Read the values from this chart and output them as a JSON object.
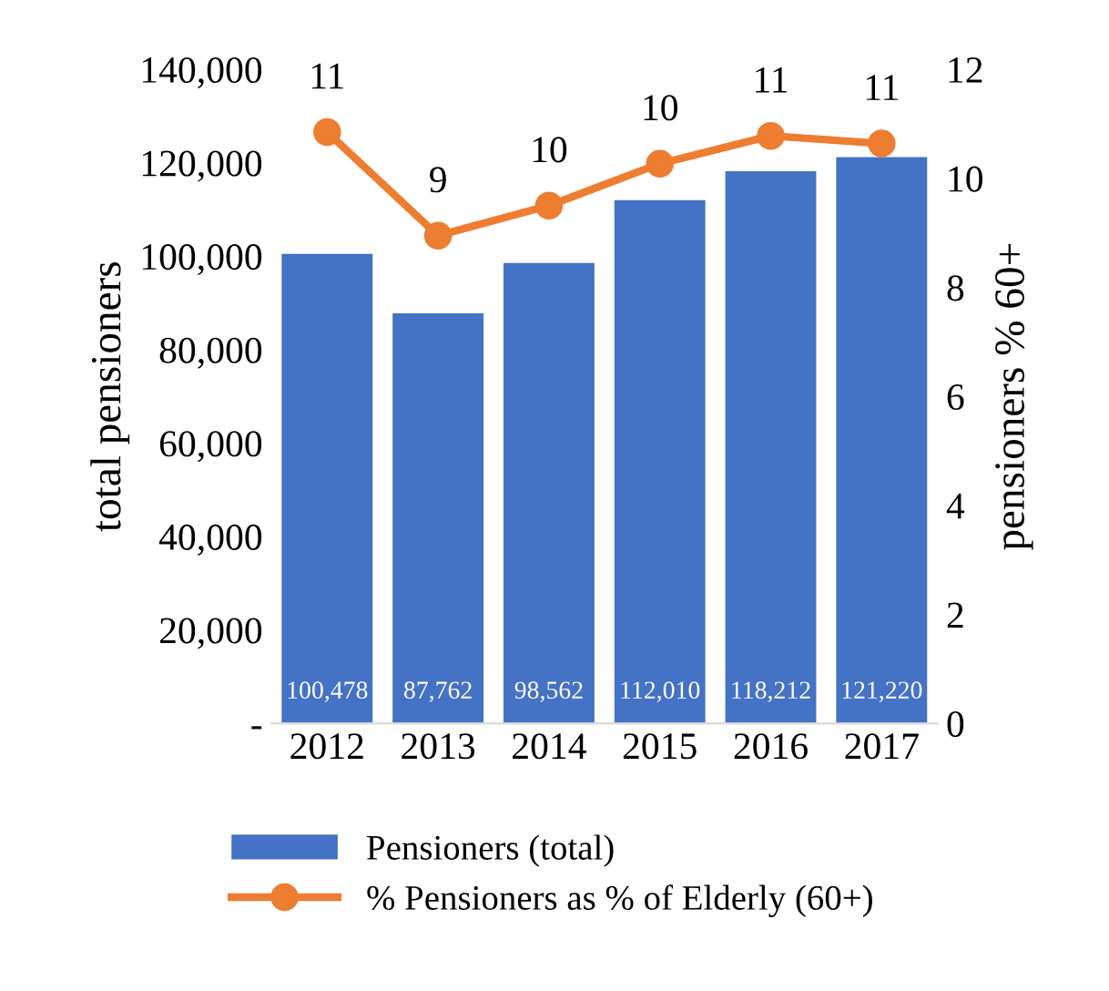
{
  "chart_data": {
    "type": "bar",
    "categories": [
      "2012",
      "2013",
      "2014",
      "2015",
      "2016",
      "2017"
    ],
    "ylabel": "total pensioners",
    "y2label": "pensioners % 60+",
    "ylim": [
      0,
      140000
    ],
    "yticks": [
      {
        "value": 0,
        "label": "-"
      },
      {
        "value": 20000,
        "label": "20,000"
      },
      {
        "value": 40000,
        "label": "40,000"
      },
      {
        "value": 60000,
        "label": "60,000"
      },
      {
        "value": 80000,
        "label": "80,000"
      },
      {
        "value": 100000,
        "label": "100,000"
      },
      {
        "value": 120000,
        "label": "120,000"
      },
      {
        "value": 140000,
        "label": "140,000"
      }
    ],
    "y2lim": [
      0,
      12
    ],
    "y2ticks": [
      0,
      2,
      4,
      6,
      8,
      10,
      12
    ],
    "grid": false,
    "legend": "bottom",
    "series": [
      {
        "name": "Pensioners (total)",
        "color": "#4472c4",
        "values": [
          100478,
          87762,
          98562,
          112010,
          118212,
          121220
        ],
        "value_labels": [
          "100,478",
          "87,762",
          "98,562",
          "112,010",
          "118,212",
          "121,220"
        ]
      },
      {
        "name": "% Pensioners as % of Elderly (60+)",
        "type": "line",
        "axis": "y2",
        "color": "#ed7d31",
        "marker": "circle",
        "values": [
          10.85,
          8.95,
          9.5,
          10.27,
          10.78,
          10.64
        ],
        "value_labels": [
          "11",
          "9",
          "10",
          "10",
          "11",
          "11"
        ]
      }
    ]
  }
}
